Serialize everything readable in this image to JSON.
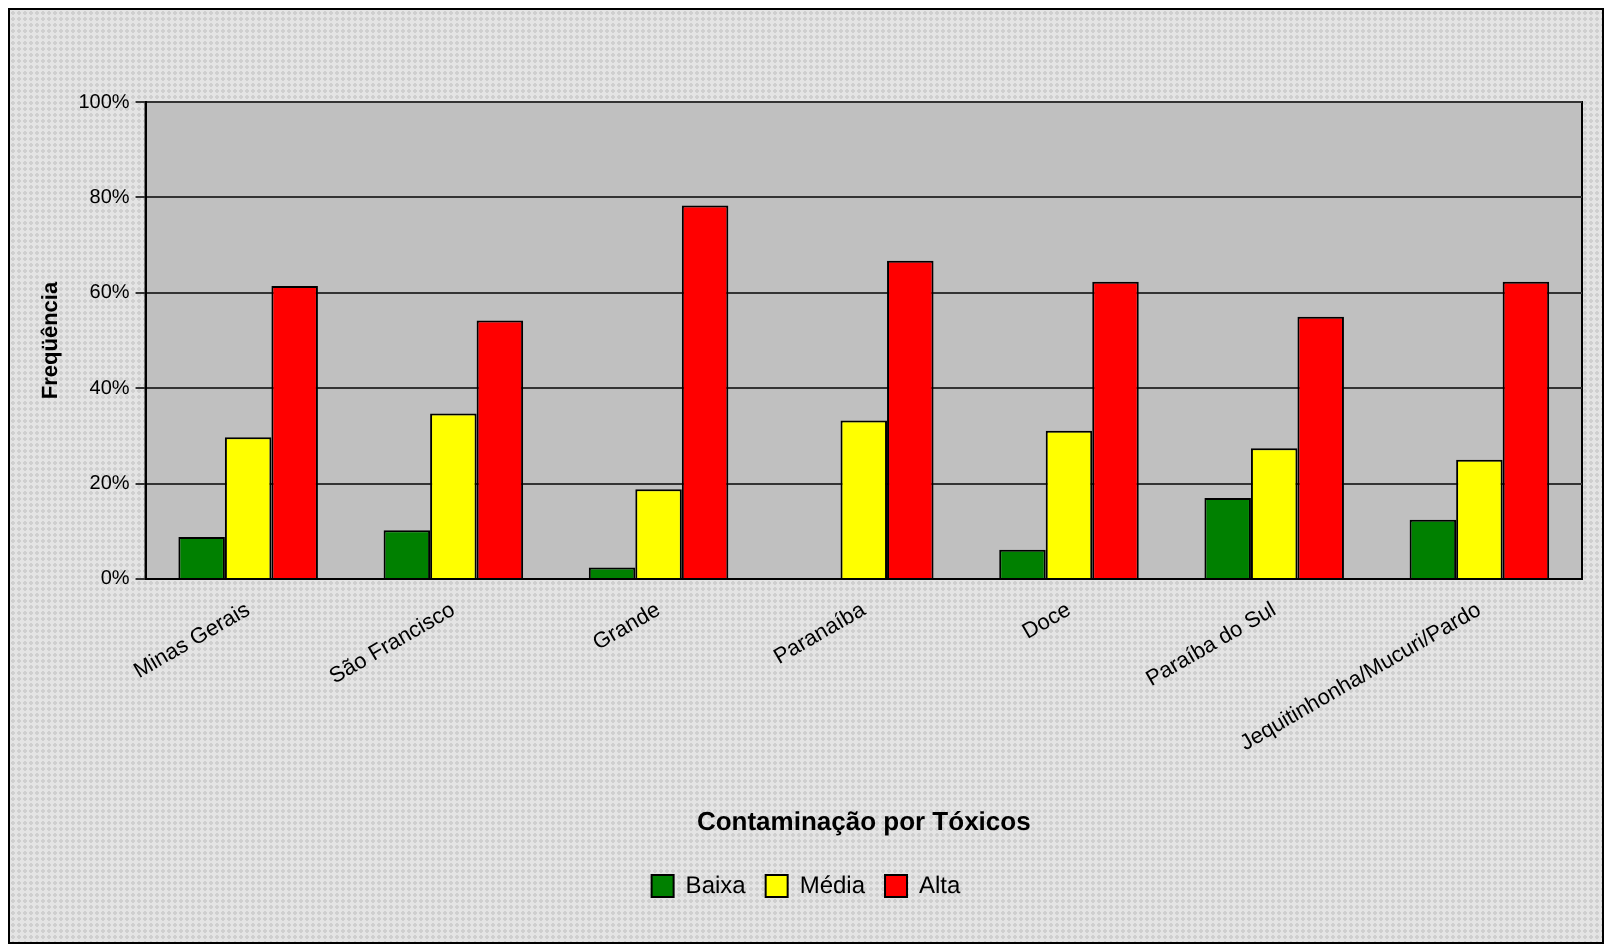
{
  "chart_data": {
    "type": "bar",
    "xlabel": "Contaminação por Tóxicos",
    "ylabel": "Freqüência",
    "categories": [
      "Minas Gerais",
      "São Francisco",
      "Grande",
      "Paranaíba",
      "Doce",
      "Paraíba do Sul",
      "Jequitinhonha/Mucuri/Pardo"
    ],
    "series": [
      {
        "name": "Baixa",
        "color": "#008000",
        "values": [
          8.8,
          10.2,
          2.4,
          0,
          6.1,
          17.0,
          12.4
        ]
      },
      {
        "name": "Média",
        "color": "#ffff00",
        "values": [
          29.7,
          34.7,
          18.8,
          33.2,
          31.1,
          27.4,
          25.0
        ]
      },
      {
        "name": "Alta",
        "color": "#ff0000",
        "values": [
          61.4,
          54.2,
          78.3,
          66.7,
          62.3,
          55.0,
          62.3
        ]
      }
    ],
    "ylim": [
      0,
      100
    ],
    "yticks": [
      {
        "value": 0,
        "label": "0%"
      },
      {
        "value": 20,
        "label": "20%"
      },
      {
        "value": 40,
        "label": "40%"
      },
      {
        "value": 60,
        "label": "60%"
      },
      {
        "value": 80,
        "label": "80%"
      },
      {
        "value": 100,
        "label": "100%"
      }
    ],
    "grid": "y",
    "legend": "bottom"
  }
}
